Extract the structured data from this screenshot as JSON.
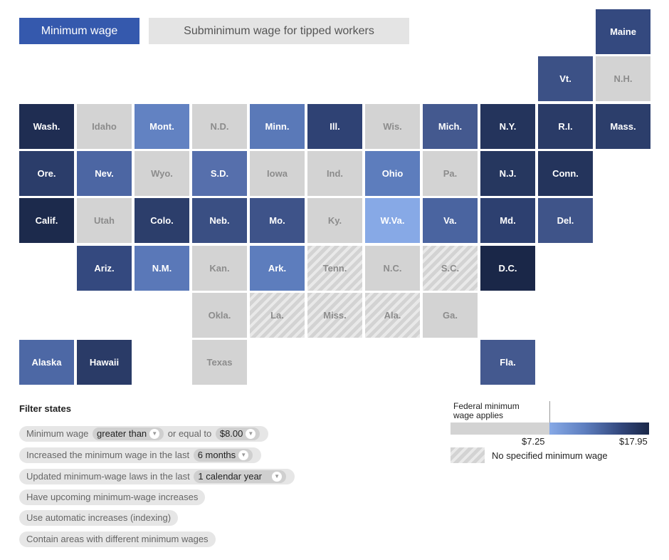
{
  "tabs": [
    {
      "label": "Minimum wage",
      "active": true
    },
    {
      "label": "Subminimum wage for tipped workers",
      "active": false
    }
  ],
  "colors": {
    "accent": "#3559ad",
    "no_state_minimum": "#d3d3d3",
    "scale_low": "#87a9e6",
    "scale_high": "#1a2748"
  },
  "map": {
    "states": [
      {
        "abbr": "Maine",
        "row": 0,
        "col": 10,
        "category": "state_wage",
        "color": "#34497f"
      },
      {
        "abbr": "Vt.",
        "row": 1,
        "col": 9,
        "category": "state_wage",
        "color": "#3c5186"
      },
      {
        "abbr": "N.H.",
        "row": 1,
        "col": 10,
        "category": "federal",
        "color": "#d3d3d3"
      },
      {
        "abbr": "Wash.",
        "row": 2,
        "col": 0,
        "category": "state_wage",
        "color": "#1f2d52"
      },
      {
        "abbr": "Idaho",
        "row": 2,
        "col": 1,
        "category": "federal",
        "color": "#d3d3d3"
      },
      {
        "abbr": "Mont.",
        "row": 2,
        "col": 2,
        "category": "state_wage",
        "color": "#6282c2"
      },
      {
        "abbr": "N.D.",
        "row": 2,
        "col": 3,
        "category": "federal",
        "color": "#d3d3d3"
      },
      {
        "abbr": "Minn.",
        "row": 2,
        "col": 4,
        "category": "state_wage",
        "color": "#5a79b8"
      },
      {
        "abbr": "Ill.",
        "row": 2,
        "col": 5,
        "category": "state_wage",
        "color": "#2f4274"
      },
      {
        "abbr": "Wis.",
        "row": 2,
        "col": 6,
        "category": "federal",
        "color": "#d3d3d3"
      },
      {
        "abbr": "Mich.",
        "row": 2,
        "col": 7,
        "category": "state_wage",
        "color": "#44598f"
      },
      {
        "abbr": "N.Y.",
        "row": 2,
        "col": 8,
        "category": "state_wage",
        "color": "#24345c"
      },
      {
        "abbr": "R.I.",
        "row": 2,
        "col": 9,
        "category": "state_wage",
        "color": "#2a3b67"
      },
      {
        "abbr": "Mass.",
        "row": 2,
        "col": 10,
        "category": "state_wage",
        "color": "#2c3e6b"
      },
      {
        "abbr": "Ore.",
        "row": 3,
        "col": 0,
        "category": "state_wage",
        "color": "#2b3d6a"
      },
      {
        "abbr": "Nev.",
        "row": 3,
        "col": 1,
        "category": "state_wage",
        "color": "#4c66a3"
      },
      {
        "abbr": "Wyo.",
        "row": 3,
        "col": 2,
        "category": "federal",
        "color": "#d3d3d3"
      },
      {
        "abbr": "S.D.",
        "row": 3,
        "col": 3,
        "category": "state_wage",
        "color": "#566fac"
      },
      {
        "abbr": "Iowa",
        "row": 3,
        "col": 4,
        "category": "federal",
        "color": "#d3d3d3"
      },
      {
        "abbr": "Ind.",
        "row": 3,
        "col": 5,
        "category": "federal",
        "color": "#d3d3d3"
      },
      {
        "abbr": "Ohio",
        "row": 3,
        "col": 6,
        "category": "state_wage",
        "color": "#5d7dbd"
      },
      {
        "abbr": "Pa.",
        "row": 3,
        "col": 7,
        "category": "federal",
        "color": "#d3d3d3"
      },
      {
        "abbr": "N.J.",
        "row": 3,
        "col": 8,
        "category": "state_wage",
        "color": "#26375f"
      },
      {
        "abbr": "Conn.",
        "row": 3,
        "col": 9,
        "category": "state_wage",
        "color": "#24345c"
      },
      {
        "abbr": "Calif.",
        "row": 4,
        "col": 0,
        "category": "state_wage",
        "color": "#1c2a4c"
      },
      {
        "abbr": "Utah",
        "row": 4,
        "col": 1,
        "category": "federal",
        "color": "#d3d3d3"
      },
      {
        "abbr": "Colo.",
        "row": 4,
        "col": 2,
        "category": "state_wage",
        "color": "#2c3e6b"
      },
      {
        "abbr": "Neb.",
        "row": 4,
        "col": 3,
        "category": "state_wage",
        "color": "#3a4f83"
      },
      {
        "abbr": "Mo.",
        "row": 4,
        "col": 4,
        "category": "state_wage",
        "color": "#3e5389"
      },
      {
        "abbr": "Ky.",
        "row": 4,
        "col": 5,
        "category": "federal",
        "color": "#d3d3d3"
      },
      {
        "abbr": "W.Va.",
        "row": 4,
        "col": 6,
        "category": "state_wage",
        "color": "#87a9e6"
      },
      {
        "abbr": "Va.",
        "row": 4,
        "col": 7,
        "category": "state_wage",
        "color": "#4a64a0"
      },
      {
        "abbr": "Md.",
        "row": 4,
        "col": 8,
        "category": "state_wage",
        "color": "#2d4070"
      },
      {
        "abbr": "Del.",
        "row": 4,
        "col": 9,
        "category": "state_wage",
        "color": "#3f5489"
      },
      {
        "abbr": "Ariz.",
        "row": 5,
        "col": 1,
        "category": "state_wage",
        "color": "#34497f"
      },
      {
        "abbr": "N.M.",
        "row": 5,
        "col": 2,
        "category": "state_wage",
        "color": "#5a78b8"
      },
      {
        "abbr": "Kan.",
        "row": 5,
        "col": 3,
        "category": "federal",
        "color": "#d3d3d3"
      },
      {
        "abbr": "Ark.",
        "row": 5,
        "col": 4,
        "category": "state_wage",
        "color": "#5d7dbd"
      },
      {
        "abbr": "Tenn.",
        "row": 5,
        "col": 5,
        "category": "none",
        "color": "#d3d3d3"
      },
      {
        "abbr": "N.C.",
        "row": 5,
        "col": 6,
        "category": "federal",
        "color": "#d3d3d3"
      },
      {
        "abbr": "S.C.",
        "row": 5,
        "col": 7,
        "category": "none",
        "color": "#d3d3d3"
      },
      {
        "abbr": "D.C.",
        "row": 5,
        "col": 8,
        "category": "state_wage",
        "color": "#1a2748"
      },
      {
        "abbr": "Okla.",
        "row": 6,
        "col": 3,
        "category": "federal",
        "color": "#d3d3d3"
      },
      {
        "abbr": "La.",
        "row": 6,
        "col": 4,
        "category": "none",
        "color": "#d3d3d3"
      },
      {
        "abbr": "Miss.",
        "row": 6,
        "col": 5,
        "category": "none",
        "color": "#d3d3d3"
      },
      {
        "abbr": "Ala.",
        "row": 6,
        "col": 6,
        "category": "none",
        "color": "#d3d3d3"
      },
      {
        "abbr": "Ga.",
        "row": 6,
        "col": 7,
        "category": "federal",
        "color": "#d3d3d3"
      },
      {
        "abbr": "Alaska",
        "row": 7,
        "col": 0,
        "category": "state_wage",
        "color": "#4d68a5"
      },
      {
        "abbr": "Hawaii",
        "row": 7,
        "col": 1,
        "category": "state_wage",
        "color": "#2a3b67"
      },
      {
        "abbr": "Texas",
        "row": 7,
        "col": 3,
        "category": "federal",
        "color": "#d3d3d3"
      },
      {
        "abbr": "Fla.",
        "row": 7,
        "col": 8,
        "category": "state_wage",
        "color": "#44598f"
      }
    ]
  },
  "filters": {
    "title": "Filter states",
    "f1": {
      "pre": "Minimum wage",
      "op": "greater than",
      "mid": "or equal to",
      "value": "$8.00"
    },
    "f2": {
      "pre": "Increased the minimum wage in the last",
      "value": "6 months"
    },
    "f3": {
      "pre": "Updated minimum-wage laws in the last",
      "value": "1 calendar year"
    },
    "f4": {
      "label": "Have upcoming minimum-wage increases"
    },
    "f5": {
      "label": "Use automatic increases (indexing)"
    },
    "f6": {
      "label": "Contain areas with different minimum wages"
    }
  },
  "legend": {
    "federal_label": "Federal minimum wage applies",
    "min_label": "$7.25",
    "max_label": "$17.95",
    "none_label": "No specified minimum wage"
  }
}
